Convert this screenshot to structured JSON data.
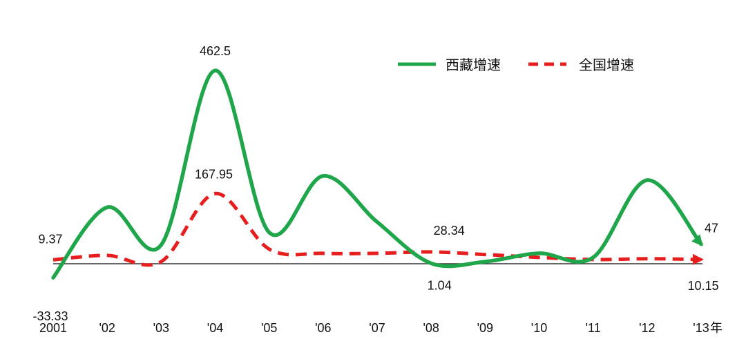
{
  "chart_data": {
    "type": "line",
    "x_unit": "年",
    "categories": [
      "2001",
      "'02",
      "'03",
      "'04",
      "'05",
      "'06",
      "'07",
      "'08",
      "'09",
      "'10",
      "'11",
      "'12",
      "'13"
    ],
    "series": [
      {
        "name": "西藏增速",
        "color": "#1fa64a",
        "style": "solid",
        "values": [
          -33.33,
          135,
          45,
          462.5,
          75,
          210,
          100,
          1.04,
          5,
          25,
          15,
          200,
          47
        ]
      },
      {
        "name": "全国增速",
        "color": "#e61e1e",
        "style": "dashed",
        "values": [
          9.37,
          20,
          5,
          167.95,
          35,
          25,
          25,
          28.34,
          22,
          15,
          10,
          12,
          10.15
        ]
      }
    ],
    "data_labels": [
      {
        "series": 0,
        "index": 0,
        "text": "-33.33"
      },
      {
        "series": 1,
        "index": 0,
        "text": "9.37"
      },
      {
        "series": 0,
        "index": 3,
        "text": "462.5"
      },
      {
        "series": 1,
        "index": 3,
        "text": "167.95"
      },
      {
        "series": 1,
        "index": 7,
        "text": "28.34"
      },
      {
        "series": 0,
        "index": 7,
        "text": "1.04"
      },
      {
        "series": 0,
        "index": 12,
        "text": "47"
      },
      {
        "series": 1,
        "index": 12,
        "text": "10.15"
      }
    ],
    "legend_position": "top-right",
    "grid": false
  }
}
